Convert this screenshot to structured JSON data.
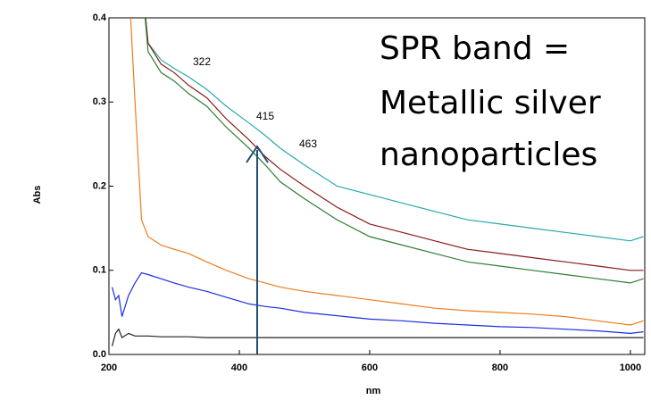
{
  "chart_data": {
    "type": "line",
    "annotations": [
      "322",
      "415",
      "463"
    ],
    "callout": [
      "SPR band =",
      "Metallic silver",
      "nanoparticles"
    ],
    "x_label": "nm",
    "y_label": "Abs",
    "xlim": [
      200,
      1022
    ],
    "ylim": [
      0,
      0.4
    ],
    "xticks": [
      200,
      400,
      600,
      800,
      1000
    ],
    "yticks": [
      {
        "value": 0,
        "label": "0.0"
      },
      0.1,
      0.2,
      0.3,
      0.4
    ],
    "grid": false,
    "x": [
      205,
      210,
      215,
      220,
      230,
      240,
      250,
      260,
      280,
      300,
      322,
      350,
      380,
      415,
      440,
      463,
      500,
      550,
      600,
      650,
      700,
      750,
      800,
      850,
      900,
      950,
      1000,
      1020
    ],
    "series": [
      {
        "color": "#2aa8b0",
        "values": [
          null,
          null,
          null,
          null,
          null,
          null,
          0.45,
          0.37,
          0.35,
          0.34,
          0.33,
          0.315,
          0.295,
          0.275,
          0.26,
          0.245,
          0.225,
          0.2,
          0.19,
          0.18,
          0.17,
          0.16,
          0.155,
          0.15,
          0.145,
          0.14,
          0.135,
          0.14
        ]
      },
      {
        "color": "#8b1a1a",
        "values": [
          null,
          null,
          null,
          null,
          null,
          null,
          0.45,
          0.37,
          0.345,
          0.335,
          0.32,
          0.305,
          0.28,
          0.255,
          0.235,
          0.22,
          0.2,
          0.175,
          0.155,
          0.145,
          0.135,
          0.125,
          0.12,
          0.115,
          0.11,
          0.105,
          0.1,
          0.1
        ]
      },
      {
        "color": "#2e7d32",
        "values": [
          null,
          null,
          null,
          null,
          null,
          null,
          0.45,
          0.36,
          0.335,
          0.325,
          0.31,
          0.295,
          0.27,
          0.245,
          0.225,
          0.205,
          0.185,
          0.16,
          0.14,
          0.13,
          0.12,
          0.11,
          0.105,
          0.1,
          0.095,
          0.09,
          0.085,
          0.09
        ]
      },
      {
        "color": "#f07c1e",
        "values": [
          null,
          null,
          null,
          null,
          0.45,
          0.3,
          0.16,
          0.14,
          0.13,
          0.125,
          0.12,
          0.11,
          0.1,
          0.09,
          0.085,
          0.08,
          0.075,
          0.07,
          0.065,
          0.06,
          0.055,
          0.052,
          0.05,
          0.048,
          0.045,
          0.04,
          0.035,
          0.04
        ]
      },
      {
        "color": "#1a2ee0",
        "values": [
          0.08,
          0.065,
          0.07,
          0.045,
          0.07,
          0.085,
          0.097,
          0.095,
          0.09,
          0.085,
          0.08,
          0.075,
          0.068,
          0.06,
          0.057,
          0.055,
          0.05,
          0.046,
          0.042,
          0.04,
          0.037,
          0.035,
          0.033,
          0.032,
          0.03,
          0.028,
          0.025,
          0.027
        ]
      },
      {
        "color": "#222222",
        "values": [
          0.01,
          0.025,
          0.03,
          0.02,
          0.025,
          0.022,
          0.022,
          0.022,
          0.021,
          0.021,
          0.021,
          0.02,
          0.02,
          0.02,
          0.02,
          0.02,
          0.02,
          0.02,
          0.02,
          0.02,
          0.02,
          0.02,
          0.02,
          0.02,
          0.02,
          0.02,
          0.02,
          0.02
        ]
      }
    ]
  }
}
